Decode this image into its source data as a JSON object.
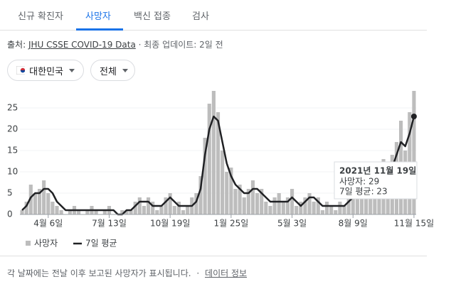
{
  "tabs": [
    "신규 확진자",
    "사망자",
    "백신 접종",
    "검사"
  ],
  "source": {
    "label": "출처:",
    "link": "JHU CSSE COVID-19 Data",
    "updated": "· 최종 업데이트: 2일 전"
  },
  "filters": [
    "대한민국",
    "전체"
  ],
  "chart_data": {
    "type": "bar-line",
    "categories": [
      null,
      null,
      null,
      null,
      null,
      null,
      "4월 6일",
      null,
      null,
      null,
      null,
      null,
      null,
      null,
      null,
      null,
      null,
      null,
      null,
      null,
      "7월 13일",
      null,
      null,
      null,
      null,
      null,
      null,
      null,
      null,
      null,
      null,
      null,
      null,
      null,
      "10월 19일",
      null,
      null,
      null,
      null,
      null,
      null,
      null,
      null,
      null,
      null,
      null,
      null,
      null,
      "1월 25일",
      null,
      null,
      null,
      null,
      null,
      null,
      null,
      null,
      null,
      null,
      null,
      null,
      null,
      "5월 3일",
      null,
      null,
      null,
      null,
      null,
      null,
      null,
      null,
      null,
      null,
      null,
      null,
      null,
      "8월 9일",
      null,
      null,
      null,
      null,
      null,
      null,
      null,
      null,
      null,
      null,
      null,
      null,
      null,
      "11월 15일"
    ],
    "series": [
      {
        "name": "사망자",
        "color": "#bdbdbd",
        "values": [
          1,
          3,
          7,
          5,
          6,
          8,
          5,
          3,
          2,
          1,
          0,
          1,
          2,
          1,
          0,
          1,
          2,
          1,
          0,
          1,
          2,
          0,
          0,
          1,
          1,
          1,
          3,
          4,
          2,
          4,
          3,
          1,
          2,
          4,
          5,
          2,
          3,
          1,
          2,
          4,
          5,
          9,
          18,
          26,
          29,
          24,
          15,
          10,
          11,
          6,
          7,
          4,
          6,
          8,
          5,
          6,
          3,
          2,
          4,
          5,
          3,
          4,
          6,
          2,
          3,
          4,
          5,
          3,
          4,
          1,
          3,
          2,
          1,
          3,
          2,
          4,
          6,
          5,
          7,
          9,
          10,
          8,
          12,
          13,
          9,
          14,
          17,
          22,
          15,
          24,
          29
        ]
      },
      {
        "name": "7일 평균",
        "color": "#202124",
        "values": [
          1,
          2,
          4,
          5,
          5,
          6,
          6,
          5,
          3,
          2,
          1,
          1,
          1,
          1,
          1,
          1,
          1,
          1,
          1,
          1,
          1,
          1,
          0,
          0,
          1,
          1,
          2,
          3,
          3,
          3,
          2,
          2,
          2,
          3,
          4,
          3,
          2,
          2,
          2,
          2,
          3,
          6,
          14,
          20,
          23,
          22,
          17,
          12,
          9,
          7,
          6,
          5,
          5,
          6,
          6,
          5,
          4,
          3,
          3,
          3,
          3,
          3,
          4,
          3,
          2,
          3,
          4,
          4,
          3,
          2,
          2,
          2,
          2,
          2,
          2,
          3,
          4,
          4,
          5,
          6,
          8,
          7,
          9,
          10,
          8,
          11,
          14,
          17,
          16,
          19,
          23
        ]
      }
    ],
    "ylim": [
      0,
      29
    ],
    "yticks": [
      0,
      5,
      10,
      15,
      20,
      25
    ],
    "tooltip": {
      "title": "2021년 11월 19일",
      "lines": [
        "사망자: 29",
        "7일 평균: 23"
      ]
    }
  },
  "footer": {
    "note": "각 날짜에는 전날 이후 보고된 사망자가 표시됩니다.",
    "sep": "·",
    "link": "데이터 정보"
  }
}
